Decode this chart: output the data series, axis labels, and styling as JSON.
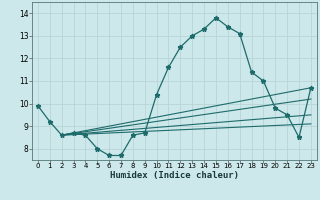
{
  "title": "",
  "xlabel": "Humidex (Indice chaleur)",
  "bg_color": "#cce8ea",
  "grid_color": "#b8d4d8",
  "line_color": "#1e6b6b",
  "xlim": [
    -0.5,
    23.5
  ],
  "ylim": [
    7.5,
    14.5
  ],
  "xticks": [
    0,
    1,
    2,
    3,
    4,
    5,
    6,
    7,
    8,
    9,
    10,
    11,
    12,
    13,
    14,
    15,
    16,
    17,
    18,
    19,
    20,
    21,
    22,
    23
  ],
  "yticks": [
    8,
    9,
    10,
    11,
    12,
    13,
    14
  ],
  "main_line": {
    "x": [
      0,
      1,
      2,
      3,
      4,
      5,
      6,
      7,
      8,
      9,
      10,
      11,
      12,
      13,
      14,
      15,
      16,
      17,
      18,
      19,
      20,
      21,
      22,
      23
    ],
    "y": [
      9.9,
      9.2,
      8.6,
      8.7,
      8.6,
      8.0,
      7.7,
      7.7,
      8.6,
      8.7,
      10.4,
      11.6,
      12.5,
      13.0,
      13.3,
      13.8,
      13.4,
      13.1,
      11.4,
      11.0,
      9.8,
      9.5,
      8.5,
      10.7
    ]
  },
  "trend_lines": [
    {
      "x": [
        2,
        23
      ],
      "y": [
        8.6,
        10.7
      ]
    },
    {
      "x": [
        2,
        23
      ],
      "y": [
        8.6,
        10.2
      ]
    },
    {
      "x": [
        2,
        23
      ],
      "y": [
        8.6,
        9.5
      ]
    },
    {
      "x": [
        2,
        23
      ],
      "y": [
        8.6,
        9.1
      ]
    }
  ]
}
